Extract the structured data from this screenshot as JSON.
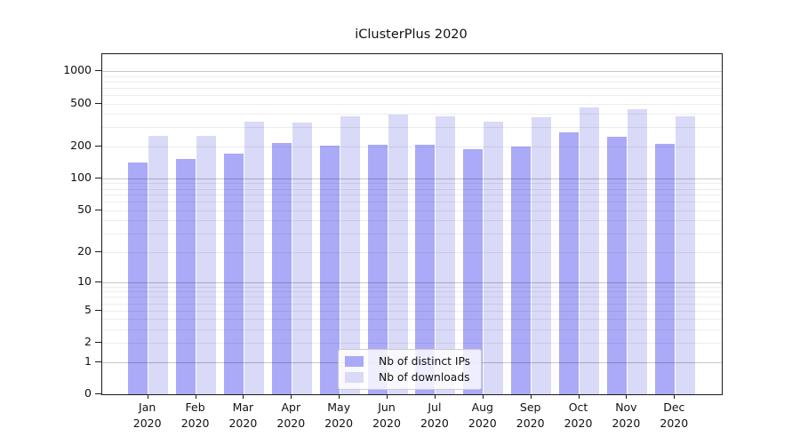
{
  "title": "iClusterPlus 2020",
  "chart_data": {
    "type": "bar",
    "title": "iClusterPlus 2020",
    "categories": [
      "Jan",
      "Feb",
      "Mar",
      "Apr",
      "May",
      "Jun",
      "Jul",
      "Aug",
      "Sep",
      "Oct",
      "Nov",
      "Dec"
    ],
    "x_year_label": "2020",
    "series": [
      {
        "name": "Nb of distinct IPs",
        "color": "#aaaaf8",
        "values": [
          141,
          151,
          169,
          216,
          202,
          207,
          206,
          189,
          197,
          268,
          247,
          212
        ]
      },
      {
        "name": "Nb of downloads",
        "color": "#d9d9f8",
        "values": [
          248,
          248,
          339,
          332,
          379,
          397,
          382,
          339,
          375,
          459,
          445,
          379
        ]
      }
    ],
    "y_axis": {
      "scale": "log1p",
      "tick_labels": [
        "1000",
        "500",
        "200",
        "100",
        "50",
        "20",
        "10",
        "5",
        "2",
        "1",
        "0"
      ],
      "tick_values": [
        1000,
        500,
        200,
        100,
        50,
        20,
        10,
        5,
        2,
        1,
        0
      ],
      "major_grid_values": [
        1,
        10,
        100,
        1000
      ],
      "minor_grid_values": [
        2,
        3,
        4,
        5,
        6,
        7,
        8,
        9,
        20,
        30,
        40,
        50,
        60,
        70,
        80,
        90,
        200,
        300,
        400,
        500,
        600,
        700,
        800,
        900
      ],
      "range_top_value": 1434,
      "range_bottom_value": 0
    },
    "grid": "on",
    "legend_position": "lower-center"
  },
  "colors": {
    "bar_distinct_ips": "#aaaaf8",
    "bar_downloads": "#d9d9f8",
    "major_grid": "rgba(0,0,0,0.22)",
    "minor_grid": "rgba(0,0,0,0.07)",
    "spine": "#1a1a1a",
    "text": "#111111",
    "background": "#ffffff"
  }
}
